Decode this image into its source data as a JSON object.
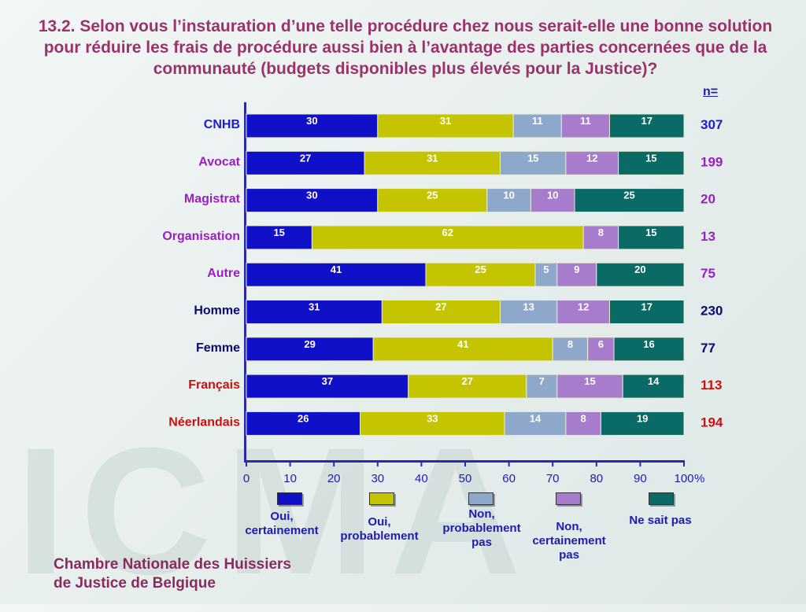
{
  "title": "13.2. Selon vous l’instauration d’une telle procédure chez nous serait-elle une bonne solution pour réduire les frais de procédure aussi bien à l’avantage des parties concernées que de la communauté (budgets disponibles plus élevés pour la Justice)?",
  "n_label": "n=",
  "watermark": "ICMA",
  "footer": {
    "line1": "Chambre Nationale des Huissiers",
    "line2": "de Justice de Belgique"
  },
  "chart_data": {
    "type": "bar",
    "orientation": "horizontal-stacked",
    "categories": [
      "CNHB",
      "Avocat",
      "Magistrat",
      "Organisation",
      "Autre",
      "Homme",
      "Femme",
      "Français",
      "Néerlandais"
    ],
    "category_colors": [
      "#1c1cd0",
      "#9b1fc0",
      "#9b1fc0",
      "#9b1fc0",
      "#9b1fc0",
      "#0a0a70",
      "#0a0a70",
      "#cc1010",
      "#cc1010"
    ],
    "n_values": [
      "307",
      "199",
      "20",
      "13",
      "75",
      "230",
      "77",
      "113",
      "194"
    ],
    "series": [
      {
        "name": "Oui, certainement",
        "color": "#1010c8",
        "values": [
          30,
          27,
          30,
          15,
          41,
          31,
          29,
          37,
          26
        ]
      },
      {
        "name": "Oui, probablement",
        "color": "#c4c400",
        "values": [
          31,
          31,
          25,
          62,
          25,
          27,
          41,
          27,
          33
        ]
      },
      {
        "name": "Non, probablement pas",
        "color": "#8ea8cc",
        "values": [
          11,
          15,
          10,
          null,
          5,
          13,
          8,
          7,
          14
        ]
      },
      {
        "name": "Non, certainement pas",
        "color": "#a77ccc",
        "values": [
          11,
          12,
          10,
          8,
          9,
          12,
          6,
          15,
          8
        ]
      },
      {
        "name": "Ne sait pas",
        "color": "#0a6a66",
        "values": [
          17,
          15,
          25,
          15,
          20,
          17,
          16,
          14,
          19
        ]
      }
    ],
    "xlim": [
      0,
      100
    ],
    "x_ticks": [
      "0",
      "10",
      "20",
      "30",
      "40",
      "50",
      "60",
      "70",
      "80",
      "90",
      "100"
    ],
    "x_unit": "%",
    "legend_placement": "bottom"
  }
}
